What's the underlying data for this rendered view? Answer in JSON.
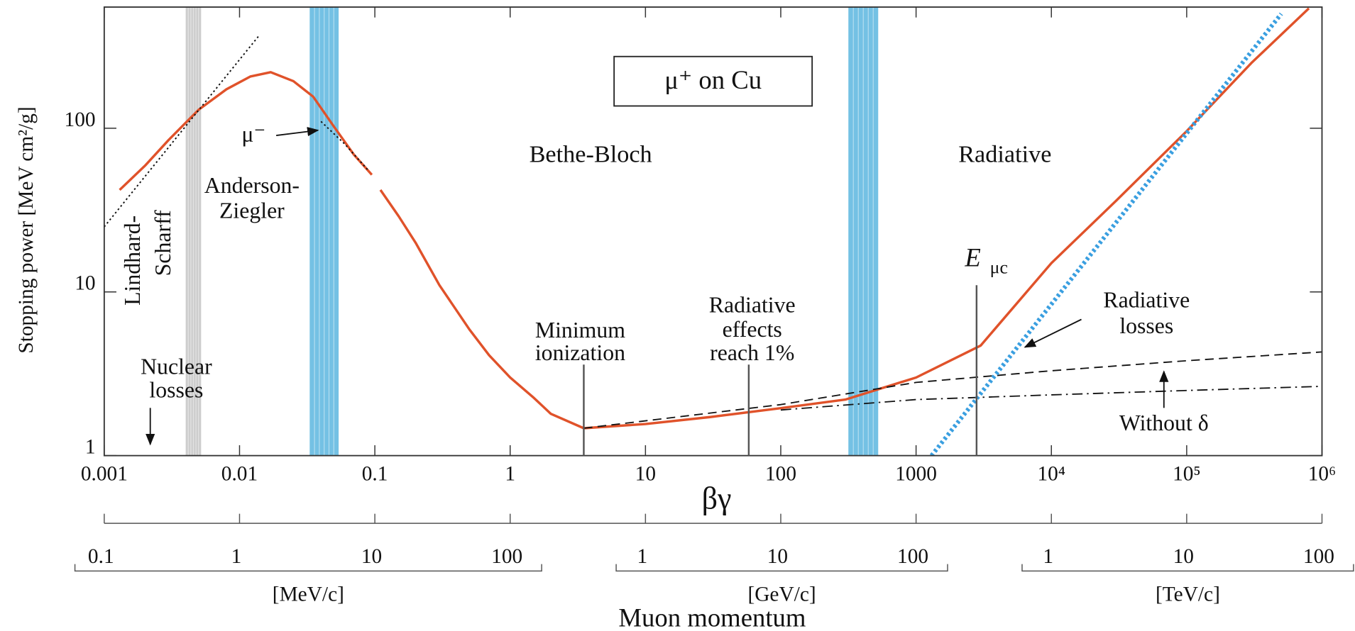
{
  "chart_data": {
    "type": "line",
    "xlabel": "βγ",
    "ylabel": "Stopping power [MeV cm²/g]",
    "log_x": true,
    "log_y": true,
    "grid": false,
    "xlim": [
      0.001,
      1000000
    ],
    "ylim": [
      1,
      550
    ],
    "xticks": [
      0.001,
      0.01,
      0.1,
      1,
      10,
      100,
      1000,
      {
        "value": 10000,
        "label": "10⁴"
      },
      {
        "value": 100000,
        "label": "10⁵"
      },
      {
        "value": 1000000,
        "label": "10⁶"
      }
    ],
    "yticks": [
      1,
      10,
      100
    ],
    "series": [
      {
        "color": "#e0522a",
        "style": "solid",
        "x": [
          0.0013,
          0.002,
          0.003,
          0.005,
          0.008,
          0.012,
          0.017,
          0.025,
          0.035,
          0.05,
          0.07,
          0.095,
          0.1,
          0.11,
          0.15,
          0.2,
          0.3,
          0.5,
          0.7,
          1,
          1.5,
          2,
          3.5,
          10,
          30,
          100,
          300,
          1000,
          3000,
          10000,
          30000,
          100000,
          300000,
          800000
        ],
        "values": [
          42,
          59,
          85,
          130,
          173,
          207,
          220,
          194,
          156,
          102,
          69,
          52,
          null,
          42,
          29,
          20,
          11,
          5.9,
          4.1,
          3.0,
          2.25,
          1.8,
          1.47,
          1.56,
          1.72,
          1.95,
          2.2,
          3.0,
          4.7,
          15,
          36,
          96,
          250,
          540
        ]
      },
      {
        "color": "#111111",
        "style": "dashed",
        "x": [
          3.5,
          100,
          1000,
          10000,
          100000,
          1000000
        ],
        "values": [
          1.47,
          2.05,
          2.8,
          3.3,
          3.8,
          4.3
        ]
      },
      {
        "color": "#111111",
        "style": "dashdot",
        "x": [
          100,
          1000,
          10000,
          100000,
          1000000
        ],
        "values": [
          1.9,
          2.2,
          2.35,
          2.5,
          2.65
        ]
      },
      {
        "color": "#3a9fe0",
        "style": "dotted-thick",
        "x": [
          1300,
          500000
        ],
        "values": [
          1,
          500
        ]
      },
      {
        "color": "#111111",
        "style": "dotted",
        "x": [
          0.001,
          0.014
        ],
        "values": [
          25,
          370
        ]
      },
      {
        "color": "#111111",
        "style": "dotted",
        "x": [
          0.04,
          0.06,
          0.09
        ],
        "values": [
          110,
          80,
          55
        ]
      }
    ],
    "bands": [
      {
        "from": 0.004,
        "to": 0.0052,
        "color": "#c4c4c4"
      },
      {
        "from": 0.033,
        "to": 0.054,
        "color": "#5cb6df"
      },
      {
        "from": 316,
        "to": 525,
        "color": "#5cb6df"
      }
    ],
    "markers": [
      {
        "x": 3.5,
        "top": 3.6
      },
      {
        "x": 58,
        "top": 3.6
      },
      {
        "x": 2800,
        "top": 11
      }
    ],
    "annotations": [
      "μ⁺ on Cu",
      "Bethe-Bloch",
      "Radiative",
      "Anderson-",
      "Ziegler",
      "Lindhard-",
      "Scharff",
      "μ⁻",
      "Nuclear",
      "losses",
      "Minimum",
      "ionization",
      "Radiative",
      "effects",
      "reach 1%",
      "E",
      "μc",
      "Radiative",
      "losses",
      "Without δ"
    ],
    "momentum_label": "Muon momentum",
    "momentum_axes": [
      {
        "unit": "[MeV/c]",
        "xlim": [
          0.10566,
          105660000
        ],
        "ticks": [
          0.1,
          1,
          10,
          100
        ]
      },
      {
        "unit": "[GeV/c]",
        "xlim": [
          0.00010566,
          105660
        ],
        "ticks": [
          1,
          10,
          100
        ]
      },
      {
        "unit": "[TeV/c]",
        "xlim": [
          1.0566e-07,
          105.66
        ],
        "ticks": [
          1,
          10,
          100
        ]
      }
    ]
  }
}
